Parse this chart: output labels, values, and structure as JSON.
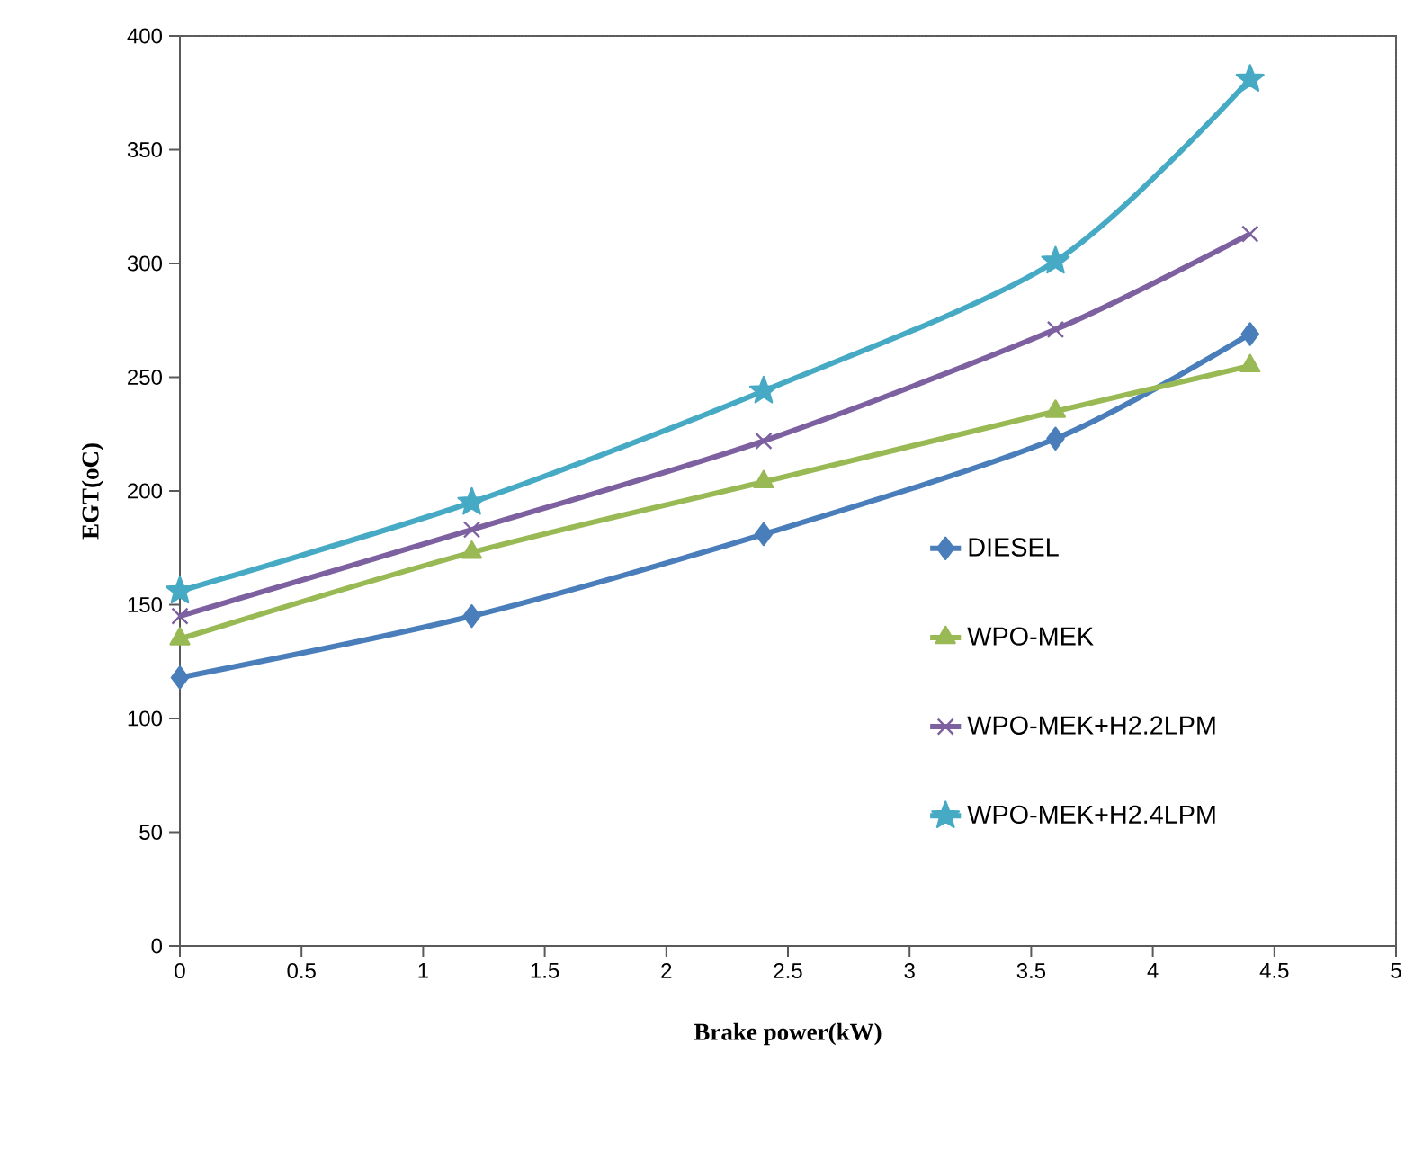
{
  "chart_data": {
    "type": "line",
    "xlabel": "Brake power(kW)",
    "ylabel": "EGT(oC)",
    "x": [
      0,
      1.2,
      2.4,
      3.6,
      4.4
    ],
    "series": [
      {
        "name": "DIESEL",
        "color": "#4a7ebb",
        "marker": "diamond",
        "values": [
          118,
          145,
          181,
          223,
          269
        ]
      },
      {
        "name": "WPO-MEK",
        "color": "#98b954",
        "marker": "triangle",
        "values": [
          135,
          173,
          204,
          235,
          255
        ]
      },
      {
        "name": "WPO-MEK+H2.2LPM",
        "color": "#7d60a0",
        "marker": "cross",
        "values": [
          145,
          183,
          222,
          271,
          313
        ]
      },
      {
        "name": "WPO-MEK+H2.4LPM",
        "color": "#46aac5",
        "marker": "star",
        "values": [
          156,
          195,
          244,
          301,
          381
        ]
      }
    ],
    "xlim": [
      0,
      5
    ],
    "xticks": [
      0,
      0.5,
      1,
      1.5,
      2,
      2.5,
      3,
      3.5,
      4,
      4.5,
      5
    ],
    "ylim": [
      0,
      400
    ],
    "yticks": [
      0,
      50,
      100,
      150,
      200,
      250,
      300,
      350,
      400
    ],
    "grid": false,
    "legend": "right",
    "line_style": "solid"
  }
}
